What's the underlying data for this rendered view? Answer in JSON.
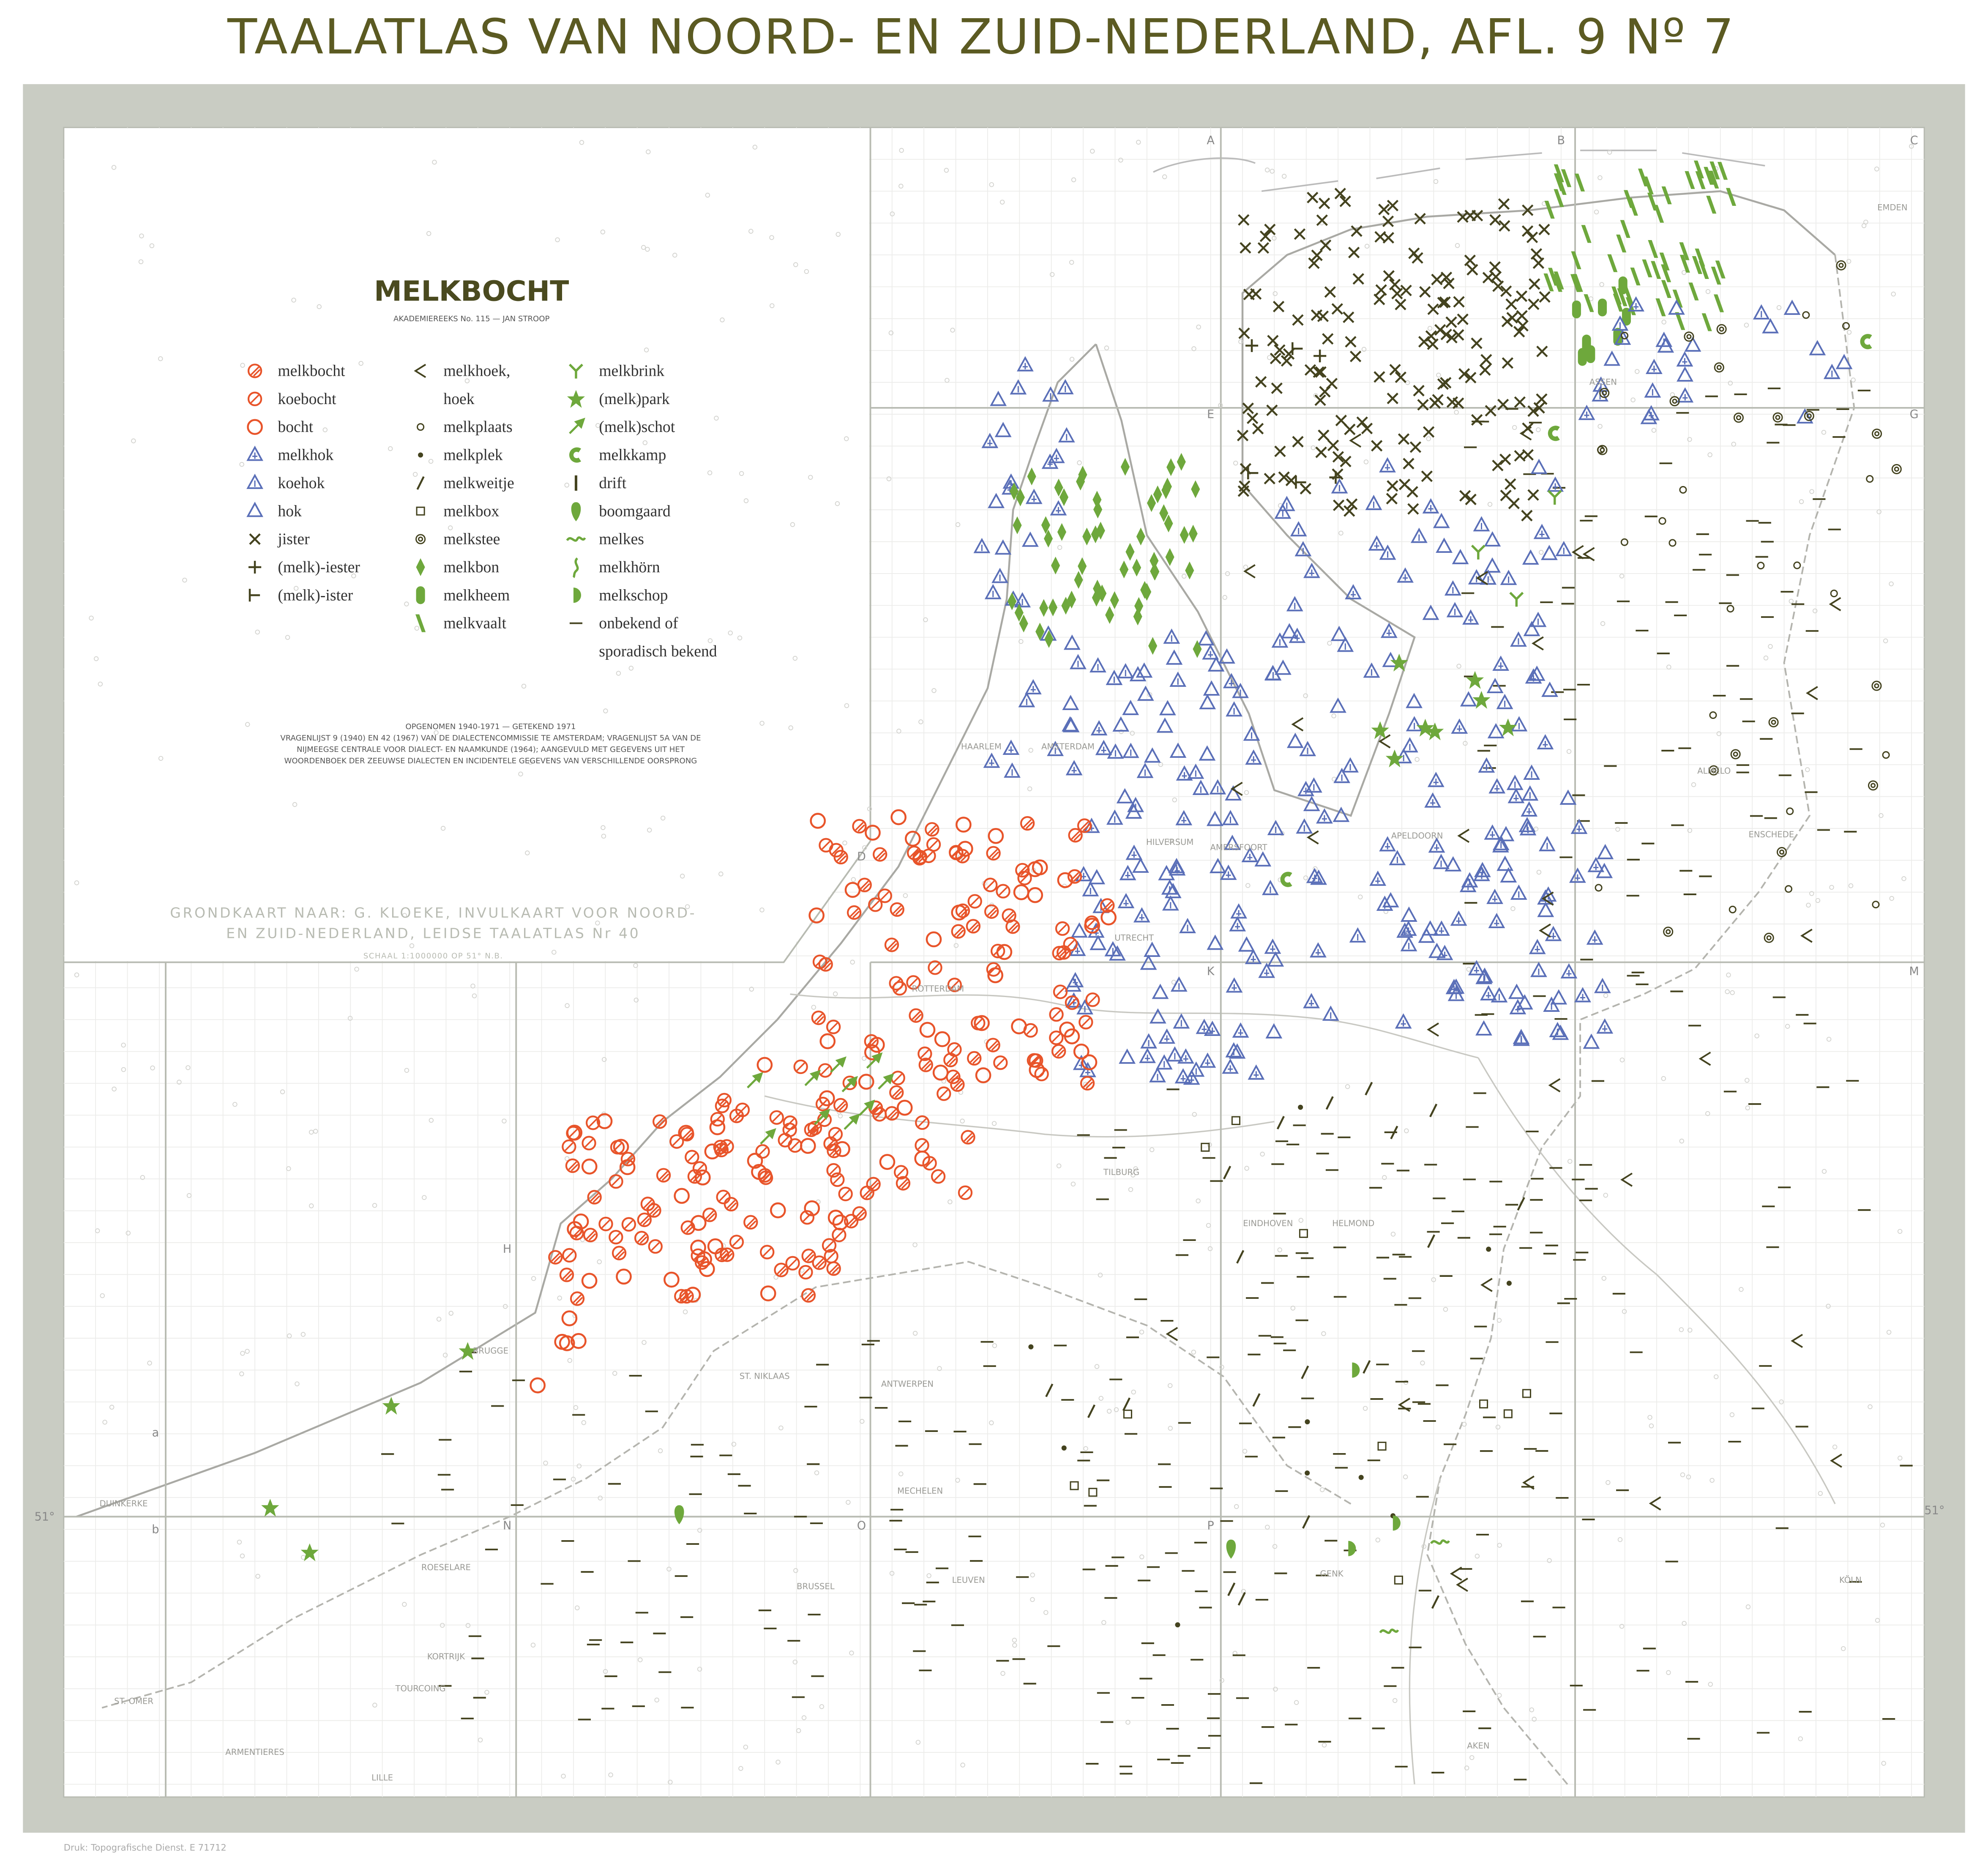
{
  "header": {
    "title": "TAALATLAS VAN NOORD- EN ZUID-NEDERLAND, AFL. 9 Nº 7"
  },
  "legend": {
    "title": "MELKBOCHT",
    "subtitle": "AKADEMIEREEKS No. 115 — JAN STROOP",
    "items": [
      {
        "lines": [
          "melkbocht"
        ]
      },
      {
        "lines": [
          "koebocht"
        ]
      },
      {
        "lines": [
          "bocht"
        ]
      },
      {
        "lines": [
          "melkhok"
        ]
      },
      {
        "lines": [
          "koehok"
        ]
      },
      {
        "lines": [
          "hok"
        ]
      },
      {
        "lines": [
          "jister"
        ]
      },
      {
        "lines": [
          "(melk)-iester"
        ]
      },
      {
        "lines": [
          "(melk)-ister"
        ]
      },
      {
        "lines": [
          "melkhoek,",
          "hoek"
        ]
      },
      {
        "lines": [
          "melkplaats"
        ]
      },
      {
        "lines": [
          "melkplek"
        ]
      },
      {
        "lines": [
          "melkweitje"
        ]
      },
      {
        "lines": [
          "melkbox"
        ]
      },
      {
        "lines": [
          "melkstee"
        ]
      },
      {
        "lines": [
          "melkbon"
        ]
      },
      {
        "lines": [
          "melkheem"
        ]
      },
      {
        "lines": [
          "melkvaalt"
        ]
      },
      {
        "lines": [
          "melkbrink"
        ]
      },
      {
        "lines": [
          "(melk)park"
        ]
      },
      {
        "lines": [
          "(melk)schot"
        ]
      },
      {
        "lines": [
          "melkkamp"
        ]
      },
      {
        "lines": [
          "drift"
        ]
      },
      {
        "lines": [
          "boomgaard"
        ]
      },
      {
        "lines": [
          "melkes"
        ]
      },
      {
        "lines": [
          "melkhörn"
        ]
      },
      {
        "lines": [
          "melkschop"
        ]
      },
      {
        "lines": [
          "onbekend of",
          "sporadisch bekend"
        ]
      }
    ]
  },
  "notes": [
    "OPGENOMEN 1940-1971 — GETEKEND 1971",
    "VRAGENLIJST 9 (1940) EN 42 (1967) VAN DE DIALECTENCOMMISSIE TE AMSTERDAM; VRAGENLIJST 5A VAN DE",
    "NIJMEEGSE CENTRALE VOOR DIALECT- EN NAAMKUNDE (1964); AANGEVULD MET GEGEVENS UIT HET",
    "WOORDENBOEK DER ZEEUWSE DIALECTEN EN INCIDENTELE GEGEVENS VAN VERSCHILLENDE OORSPRONG"
  ],
  "basemap": [
    "GRONDKAART NAAR: G. KLOEKE, INVULKAART VOOR NOORD-",
    "EN ZUID-NEDERLAND, LEIDSE TAALATLAS Nr 40",
    "SCHAAL 1:1000000 OP 51° N.B."
  ],
  "grid_labels": [
    "A",
    "B",
    "C",
    "D",
    "E",
    "G",
    "H",
    "K",
    "M",
    "N",
    "O",
    "P",
    "a",
    "b",
    "51°",
    "51°"
  ],
  "places": [
    "HAARLEM",
    "AMSTERDAM",
    "ASSEN",
    "EMDEN",
    "ALMELO",
    "ENSCHEDE",
    "APELDOORN",
    "AMERSFOORT",
    "HILVERSUM",
    "UTRECHT",
    "ROTTERDAM",
    "TILBURG",
    "EINDHOVEN",
    "HELMOND",
    "BRUGGE",
    "ANTWERPEN",
    "MECHELEN",
    "BRUSSEL",
    "LEUVEN",
    "ROESELARE",
    "KORTRIJK",
    "DUINKERKE",
    "ST. OMER",
    "ARMENTIERES",
    "TOURCOING",
    "LILLE",
    "GENK",
    "AKEN",
    "KÖLN",
    "ST. NIKLAAS"
  ],
  "printer": "Druk: Topografische Dienst. E 71712"
}
